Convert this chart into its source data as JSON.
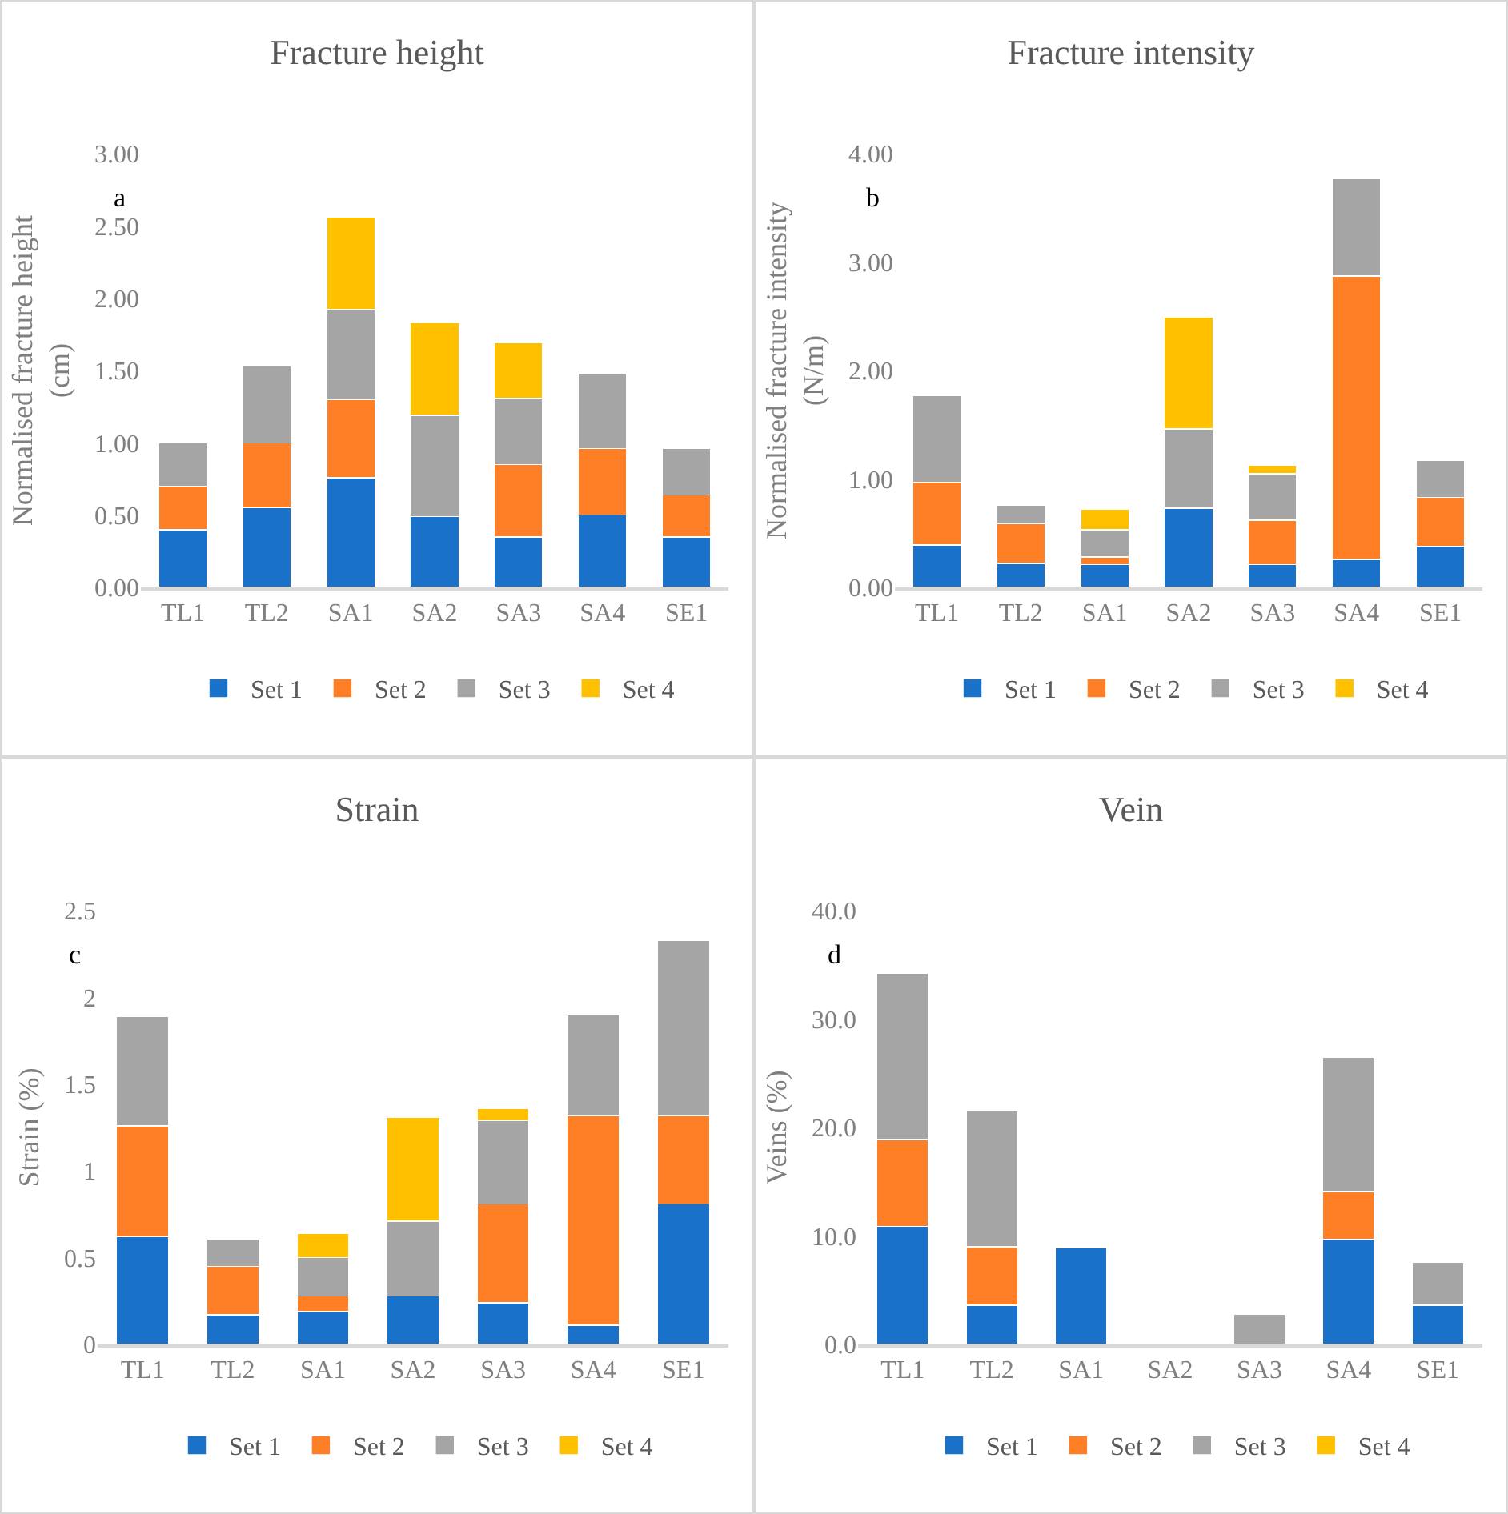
{
  "chart_data": [
    {
      "type": "bar",
      "title": "Fracture height",
      "ylabel": "Normalised fracture height (cm)",
      "annotations": [
        "a"
      ],
      "stacked": true,
      "legend": "bottom",
      "categories": [
        "TL1",
        "TL2",
        "SA1",
        "SA2",
        "SA3",
        "SA4",
        "SE1"
      ],
      "ylim": [
        0,
        3
      ],
      "yticks": [
        {
          "value": 0,
          "label": "0.00"
        },
        {
          "value": 0.5,
          "label": "0.50"
        },
        {
          "value": 1,
          "label": "1.00"
        },
        {
          "value": 1.5,
          "label": "1.50"
        },
        {
          "value": 2,
          "label": "2.00"
        },
        {
          "value": 2.5,
          "label": "2.50"
        },
        {
          "value": 3,
          "label": "3.00"
        }
      ],
      "series": [
        {
          "name": "Set 1",
          "color": "#1a71c9",
          "values": [
            0.4,
            0.55,
            0.76,
            0.49,
            0.35,
            0.5,
            0.35
          ]
        },
        {
          "name": "Set 2",
          "color": "#ff7f27",
          "values": [
            0.3,
            0.45,
            0.54,
            null,
            0.5,
            0.46,
            0.29
          ]
        },
        {
          "name": "Set 3",
          "color": "#a5a5a5",
          "values": [
            0.3,
            0.53,
            0.62,
            0.7,
            0.46,
            0.52,
            0.32
          ]
        },
        {
          "name": "Set 4",
          "color": "#ffc000",
          "values": [
            null,
            null,
            0.64,
            0.64,
            0.38,
            null,
            null
          ]
        }
      ]
    },
    {
      "type": "bar",
      "title": "Fracture intensity",
      "ylabel": "Normalised fracture intensity (N/m)",
      "annotations": [
        "b"
      ],
      "stacked": true,
      "legend": "bottom",
      "categories": [
        "TL1",
        "TL2",
        "SA1",
        "SA2",
        "SA3",
        "SA4",
        "SE1"
      ],
      "ylim": [
        0,
        4
      ],
      "yticks": [
        {
          "value": 0,
          "label": "0.00"
        },
        {
          "value": 1,
          "label": "1.00"
        },
        {
          "value": 2,
          "label": "2.00"
        },
        {
          "value": 3,
          "label": "3.00"
        },
        {
          "value": 4,
          "label": "4.00"
        }
      ],
      "series": [
        {
          "name": "Set 1",
          "color": "#1a71c9",
          "values": [
            0.39,
            0.22,
            0.21,
            0.73,
            0.21,
            0.26,
            0.38
          ]
        },
        {
          "name": "Set 2",
          "color": "#ff7f27",
          "values": [
            0.58,
            0.37,
            0.07,
            null,
            0.41,
            2.61,
            0.45
          ]
        },
        {
          "name": "Set 3",
          "color": "#a5a5a5",
          "values": [
            0.8,
            0.17,
            0.25,
            0.73,
            0.43,
            0.9,
            0.34
          ]
        },
        {
          "name": "Set 4",
          "color": "#ffc000",
          "values": [
            null,
            null,
            0.19,
            1.03,
            0.08,
            null,
            null
          ]
        }
      ]
    },
    {
      "type": "bar",
      "title": "Strain",
      "ylabel": "Strain (%)",
      "annotations": [
        "c"
      ],
      "stacked": true,
      "legend": "bottom",
      "categories": [
        "TL1",
        "TL2",
        "SA1",
        "SA2",
        "SA3",
        "SA4",
        "SE1"
      ],
      "ylim": [
        0,
        2.5
      ],
      "yticks": [
        0,
        0.5,
        1,
        1.5,
        2,
        2.5
      ],
      "series": [
        {
          "name": "Set 1",
          "color": "#1a71c9",
          "values": [
            0.62,
            0.17,
            0.19,
            0.28,
            0.24,
            0.11,
            0.81
          ]
        },
        {
          "name": "Set 2",
          "color": "#ff7f27",
          "values": [
            0.64,
            0.28,
            0.09,
            null,
            0.57,
            1.21,
            0.51
          ]
        },
        {
          "name": "Set 3",
          "color": "#a5a5a5",
          "values": [
            0.63,
            0.16,
            0.22,
            0.43,
            0.48,
            0.58,
            1.01
          ]
        },
        {
          "name": "Set 4",
          "color": "#ffc000",
          "values": [
            null,
            null,
            0.14,
            0.6,
            0.07,
            null,
            null
          ]
        }
      ]
    },
    {
      "type": "bar",
      "title": "Vein",
      "ylabel": "Veins (%)",
      "annotations": [
        "d"
      ],
      "stacked": true,
      "legend": "bottom",
      "categories": [
        "TL1",
        "TL2",
        "SA1",
        "SA2",
        "SA3",
        "SA4",
        "SE1"
      ],
      "ylim": [
        0,
        40
      ],
      "yticks": [
        {
          "value": 0,
          "label": "0.0"
        },
        {
          "value": 10,
          "label": "10.0"
        },
        {
          "value": 20,
          "label": "20.0"
        },
        {
          "value": 30,
          "label": "30.0"
        },
        {
          "value": 40,
          "label": "40.0"
        }
      ],
      "series": [
        {
          "name": "Set 1",
          "color": "#1a71c9",
          "values": [
            10.9,
            3.6,
            8.9,
            null,
            null,
            9.7,
            3.6
          ]
        },
        {
          "name": "Set 2",
          "color": "#ff7f27",
          "values": [
            8.0,
            5.4,
            null,
            null,
            null,
            4.4,
            null
          ]
        },
        {
          "name": "Set 3",
          "color": "#a5a5a5",
          "values": [
            15.3,
            12.5,
            null,
            null,
            2.8,
            12.4,
            4.0
          ]
        },
        {
          "name": "Set 4",
          "color": "#ffc000",
          "values": [
            null,
            null,
            null,
            null,
            null,
            null,
            null
          ]
        }
      ]
    }
  ]
}
